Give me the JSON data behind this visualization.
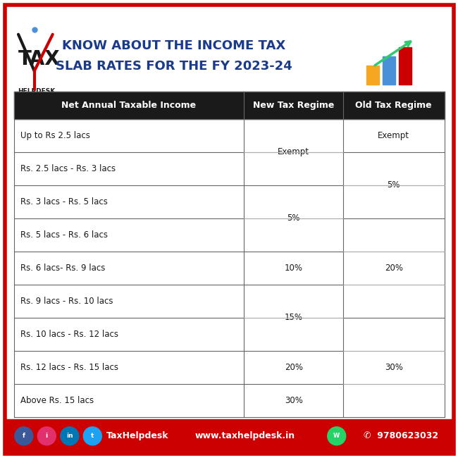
{
  "title_line1": "KNOW ABOUT THE INCOME TAX",
  "title_line2": "SLAB RATES FOR THE FY 2023-24",
  "title_color": "#1a3a8c",
  "border_color": "#cc0000",
  "bg_color": "#ffffff",
  "header_bg": "#1a1a1a",
  "header_text_color": "#ffffff",
  "table_header": [
    "Net Annual Taxable Income",
    "New Tax Regime",
    "Old Tax Regime"
  ],
  "rows": [
    [
      "Up to Rs 2.5 lacs",
      "",
      "Exempt"
    ],
    [
      "Rs. 2.5 lacs - Rs. 3 lacs",
      "Exempt",
      ""
    ],
    [
      "Rs. 3 lacs - Rs. 5 lacs",
      "",
      "5%"
    ],
    [
      "Rs. 5 lacs - Rs. 6 lacs",
      "5%",
      ""
    ],
    [
      "Rs. 6 lacs- Rs. 9 lacs",
      "10%",
      "20%"
    ],
    [
      "Rs. 9 lacs - Rs. 10 lacs",
      "",
      ""
    ],
    [
      "Rs. 10 lacs - Rs. 12 lacs",
      "15%",
      ""
    ],
    [
      "Rs. 12 lacs - Rs. 15 lacs",
      "20%",
      "30%"
    ],
    [
      "Above Rs. 15 lacs",
      "30%",
      ""
    ]
  ],
  "footer_bg": "#cc0000",
  "footer_color": "#ffffff",
  "cell_text_color": "#1a1a1a",
  "logo_tax_color": "#1a1a1a",
  "logo_x_color": "#cc0000",
  "bar_colors": [
    "#f5a623",
    "#4a90d9",
    "#cc0000"
  ],
  "arrow_color": "#2ecc71",
  "icon_colors": [
    "#3b5998",
    "#e1306c",
    "#0077b5",
    "#1da1f2"
  ],
  "icon_labels": [
    "f",
    "i",
    "in",
    "t"
  ],
  "wa_color": "#25d366"
}
